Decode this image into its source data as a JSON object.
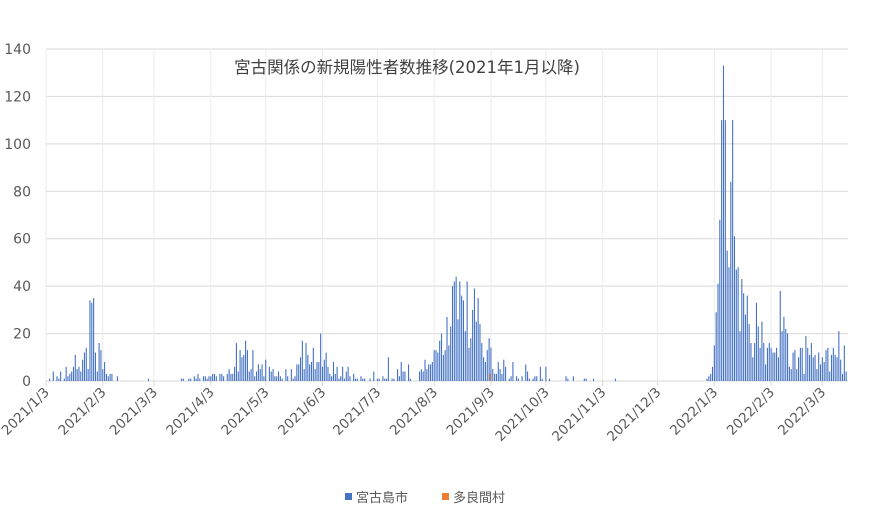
{
  "chart_data": {
    "type": "bar",
    "title": "宮古関係の新規陽性者数推移(2021年1月以降)",
    "xlabel": "",
    "ylabel": "",
    "ylim": [
      0,
      140
    ],
    "yticks": [
      0,
      20,
      40,
      60,
      80,
      100,
      120,
      140
    ],
    "xlim": [
      "2021/1/3",
      "2022/3/16"
    ],
    "xticks": [
      "2021/1/3",
      "2021/2/3",
      "2021/3/3",
      "2021/4/3",
      "2021/5/3",
      "2021/6/3",
      "2021/7/3",
      "2021/8/3",
      "2021/9/3",
      "2021/10/3",
      "2021/11/3",
      "2021/12/3",
      "2022/1/3",
      "2022/2/3",
      "2022/3/3"
    ],
    "grid": true,
    "legend_position": "bottom",
    "series": [
      {
        "name": "宮古島市",
        "color": "#4472c4",
        "values_by_month": {
          "2021/1": [
            0,
            0,
            0,
            0,
            1,
            0,
            4,
            0,
            2,
            1,
            4,
            0,
            1,
            6,
            2,
            3,
            4,
            6,
            11,
            5,
            6,
            4,
            9,
            12,
            14,
            5,
            34,
            33,
            35,
            12,
            4
          ],
          "2021/2": [
            16,
            13,
            5,
            8,
            3,
            2,
            3,
            3,
            0,
            0,
            2,
            0,
            0,
            0,
            0,
            0,
            0,
            0,
            0,
            0,
            0,
            0,
            0,
            0,
            0,
            0,
            0,
            1
          ],
          "2021/3": [
            0,
            0,
            0,
            0,
            0,
            0,
            0,
            0,
            0,
            0,
            0,
            0,
            0,
            0,
            0,
            0,
            0,
            1,
            1,
            0,
            0,
            1,
            1,
            0,
            2,
            1,
            3,
            1,
            0,
            2,
            2
          ],
          "2021/4": [
            1,
            2,
            2,
            3,
            3,
            2,
            0,
            3,
            3,
            2,
            0,
            3,
            5,
            3,
            3,
            6,
            16,
            4,
            13,
            10,
            11,
            17,
            13,
            4,
            5,
            13,
            2,
            4,
            7,
            5
          ],
          "2021/5": [
            7,
            2,
            9,
            0,
            6,
            4,
            5,
            2,
            2,
            4,
            2,
            1,
            0,
            5,
            2,
            0,
            5,
            1,
            2,
            7,
            7,
            10,
            17,
            5,
            16,
            11,
            7,
            8,
            14,
            5,
            8
          ],
          "2021/6": [
            8,
            20,
            6,
            9,
            12,
            6,
            3,
            2,
            8,
            3,
            6,
            1,
            2,
            6,
            1,
            4,
            6,
            2,
            0,
            3,
            1,
            1,
            0,
            2,
            1,
            1,
            0,
            0,
            1,
            0
          ],
          "2021/7": [
            4,
            0,
            1,
            1,
            0,
            2,
            1,
            1,
            10,
            0,
            1,
            1,
            0,
            5,
            2,
            8,
            4,
            4,
            0,
            7,
            1,
            0,
            0,
            0,
            0,
            4,
            5,
            4,
            9,
            5,
            7
          ],
          "2021/8": [
            7,
            8,
            13,
            13,
            12,
            17,
            20,
            11,
            13,
            27,
            15,
            23,
            40,
            42,
            44,
            26,
            42,
            36,
            34,
            21,
            42,
            14,
            18,
            30,
            39,
            25,
            35,
            24,
            16,
            10,
            8
          ],
          "2021/9": [
            13,
            18,
            14,
            5,
            3,
            3,
            8,
            5,
            3,
            9,
            6,
            0,
            1,
            2,
            8,
            0,
            2,
            1,
            0,
            2,
            0,
            7,
            4,
            1,
            0,
            1,
            2,
            2,
            0,
            6
          ],
          "2021/10": [
            1,
            0,
            6,
            0,
            1,
            0,
            0,
            0,
            0,
            0,
            0,
            0,
            0,
            2,
            1,
            0,
            0,
            2,
            0,
            0,
            0,
            0,
            0,
            1,
            1,
            0,
            0,
            0,
            1,
            0,
            0
          ],
          "2021/11": [
            0,
            0,
            0,
            0,
            0,
            0,
            0,
            0,
            0,
            1,
            0,
            0,
            0,
            0,
            0,
            0,
            0,
            0,
            0,
            0,
            0,
            0,
            0,
            0,
            0,
            0,
            0,
            0,
            0,
            0
          ],
          "2021/12": [
            0,
            0,
            0,
            0,
            0,
            0,
            0,
            0,
            0,
            0,
            0,
            0,
            0,
            0,
            0,
            0,
            0,
            0,
            0,
            0,
            0,
            0,
            0,
            0,
            0,
            0,
            0,
            0,
            0,
            1,
            2
          ],
          "2022/1": [
            3,
            6,
            15,
            29,
            41,
            68,
            110,
            133,
            110,
            55,
            48,
            84,
            110,
            61,
            47,
            48,
            21,
            43,
            37,
            28,
            36,
            24,
            16,
            10,
            16,
            33,
            23,
            14,
            25,
            16,
            7
          ],
          "2022/2": [
            14,
            16,
            14,
            12,
            12,
            14,
            10,
            38,
            21,
            27,
            22,
            20,
            6,
            5,
            12,
            13,
            5,
            10,
            14,
            14,
            3,
            19,
            14,
            11,
            16,
            10,
            11,
            5
          ],
          "2022/3": [
            12,
            7,
            10,
            8,
            13,
            14,
            4,
            11,
            14,
            11,
            10,
            21,
            9,
            3,
            15,
            4
          ]
        }
      },
      {
        "name": "多良間村",
        "color": "#ed7d31",
        "values_by_month": {
          "2021/9": [
            0,
            3
          ]
        }
      }
    ]
  }
}
